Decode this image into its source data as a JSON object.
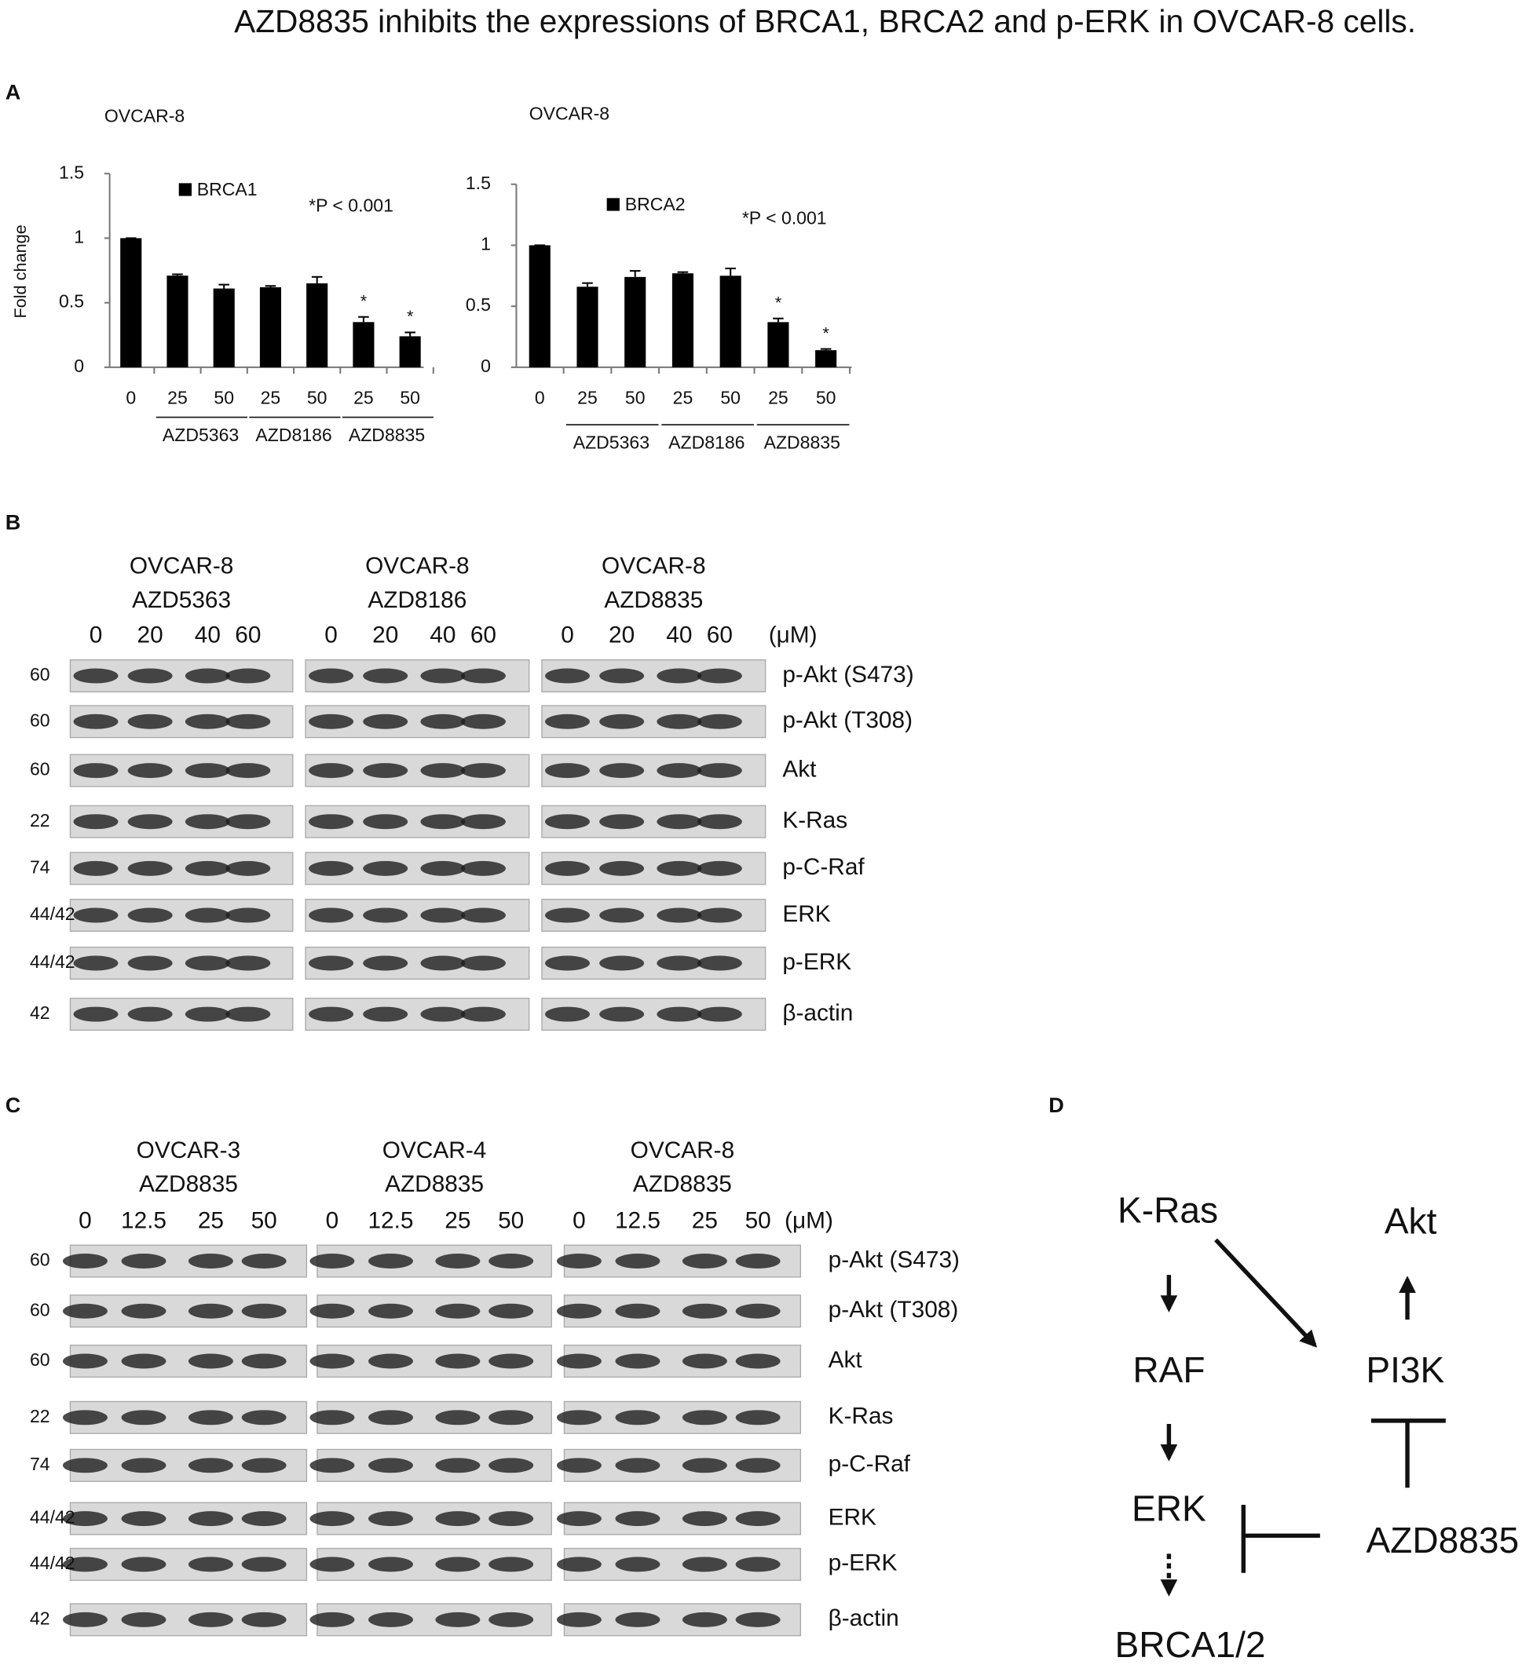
{
  "title": "AZD8835 inhibits the expressions of BRCA1, BRCA2 and p-ERK  in OVCAR-8 cells.",
  "panel_labels": [
    "A",
    "B",
    "C",
    "D"
  ],
  "chart_data": [
    {
      "type": "bar",
      "title": "OVCAR-8",
      "y_label": "Fold change",
      "groups": [
        {
          "name": null,
          "categories": [
            "0"
          ]
        },
        {
          "name": "AZD5363",
          "categories": [
            "25",
            "50"
          ]
        },
        {
          "name": "AZD8186",
          "categories": [
            "25",
            "50"
          ]
        },
        {
          "name": "AZD8835",
          "categories": [
            "25",
            "50"
          ]
        }
      ],
      "series": [
        {
          "name": "BRCA1",
          "color": "#000000",
          "values": [
            1,
            0.71,
            0.61,
            0.62,
            0.65,
            0.35,
            0.24
          ],
          "errors": [
            0,
            0.01,
            0.03,
            0.01,
            0.05,
            0.04,
            0.03
          ],
          "markers": [
            null,
            null,
            null,
            null,
            null,
            "*",
            "*"
          ]
        }
      ],
      "annotation": "*P < 0.001",
      "ylim": [
        0,
        1.5
      ],
      "yticks": [
        0,
        0.5,
        1,
        1.5
      ],
      "grid": false
    },
    {
      "type": "bar",
      "title": "OVCAR-8",
      "groups": [
        {
          "name": null,
          "categories": [
            "0"
          ]
        },
        {
          "name": "AZD5363",
          "categories": [
            "25",
            "50"
          ]
        },
        {
          "name": "AZD8186",
          "categories": [
            "25",
            "50"
          ]
        },
        {
          "name": "AZD8835",
          "categories": [
            "25",
            "50"
          ]
        }
      ],
      "series": [
        {
          "name": "BRCA2",
          "color": "#000000",
          "values": [
            1,
            0.66,
            0.74,
            0.77,
            0.75,
            0.37,
            0.14
          ],
          "errors": [
            0,
            0.03,
            0.05,
            0.01,
            0.06,
            0.03,
            0.01
          ],
          "markers": [
            null,
            null,
            null,
            null,
            null,
            "*",
            "*"
          ]
        }
      ],
      "annotation": "*P < 0.001",
      "ylim": [
        0,
        1.5
      ],
      "yticks": [
        0,
        0.5,
        1,
        1.5
      ],
      "grid": false
    }
  ],
  "blots": [
    {
      "blocks": [
        {
          "header": [
            "OVCAR-8",
            "AZD5363"
          ],
          "doses": [
            "0",
            "20",
            "40",
            "60"
          ]
        },
        {
          "header": [
            "OVCAR-8",
            "AZD8186"
          ],
          "doses": [
            "0",
            "20",
            "40",
            "60"
          ]
        },
        {
          "header": [
            "OVCAR-8",
            "AZD8835"
          ],
          "doses": [
            "0",
            "20",
            "40",
            "60"
          ]
        }
      ],
      "unit": "(μM)",
      "rows": [
        {
          "mw": "60",
          "label": "p-Akt (S473)"
        },
        {
          "mw": "60",
          "label": "p-Akt (T308)"
        },
        {
          "mw": "60",
          "label": "Akt"
        },
        {
          "mw": "22",
          "label": "K-Ras"
        },
        {
          "mw": "74",
          "label": "p-C-Raf"
        },
        {
          "mw": "44/42",
          "label": "ERK"
        },
        {
          "mw": "44/42",
          "label": "p-ERK"
        },
        {
          "mw": "42",
          "label": "β-actin"
        }
      ]
    },
    {
      "blocks": [
        {
          "header": [
            "OVCAR-3",
            "AZD8835"
          ],
          "doses": [
            "0",
            "12.5",
            "25",
            "50"
          ]
        },
        {
          "header": [
            "OVCAR-4",
            "AZD8835"
          ],
          "doses": [
            "0",
            "12.5",
            "25",
            "50"
          ]
        },
        {
          "header": [
            "OVCAR-8",
            "AZD8835"
          ],
          "doses": [
            "0",
            "12.5",
            "25",
            "50"
          ]
        }
      ],
      "unit": "(μM)",
      "rows": [
        {
          "mw": "60",
          "label": "p-Akt (S473)"
        },
        {
          "mw": "60",
          "label": "p-Akt (T308)"
        },
        {
          "mw": "60",
          "label": "Akt"
        },
        {
          "mw": "22",
          "label": "K-Ras"
        },
        {
          "mw": "74",
          "label": "p-C-Raf"
        },
        {
          "mw": "44/42",
          "label": "ERK"
        },
        {
          "mw": "44/42",
          "label": "p-ERK"
        },
        {
          "mw": "42",
          "label": "β-actin"
        }
      ]
    }
  ],
  "pathway": {
    "nodes": [
      "K-Ras",
      "RAF",
      "ERK",
      "BRCA1/2",
      "Akt",
      "PI3K",
      "AZD8835"
    ]
  }
}
